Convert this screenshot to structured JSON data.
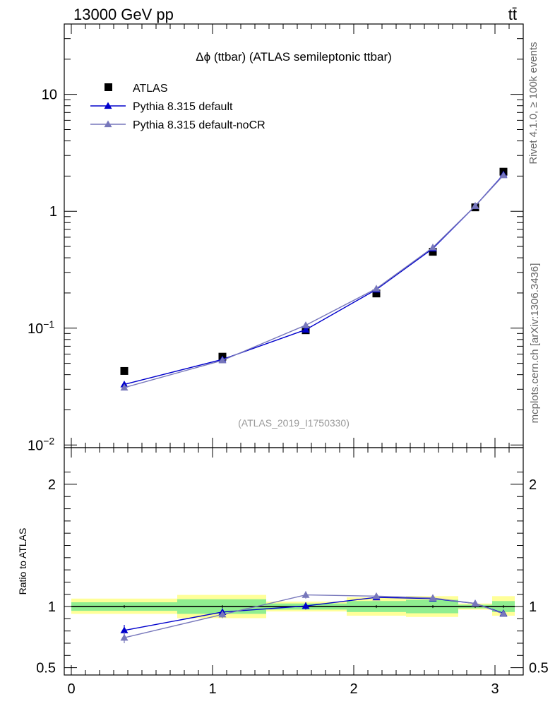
{
  "header": {
    "left_label": "13000 GeV pp",
    "right_label": "tt̄"
  },
  "side_labels": {
    "top": "Rivet 4.1.0, ≥ 100k events",
    "bottom": "mcplots.cern.ch [arXiv:1306.3436]"
  },
  "chart_data": {
    "type": "scatter",
    "title": "Δϕ (ttbar) (ATLAS semileptonic ttbar)",
    "analysis_tag": "(ATLAS_2019_I1750330)",
    "x_ticks": [
      "0",
      "1",
      "2",
      "3"
    ],
    "xlim": [
      -0.05,
      3.2
    ],
    "main": {
      "yscale": "log",
      "ylim": [
        0.0095,
        40
      ],
      "y_ticks": [
        {
          "base": "10",
          "exp": "−2",
          "value": 0.01
        },
        {
          "base": "10",
          "exp": "−1",
          "value": 0.1
        },
        {
          "base": "1",
          "exp": "",
          "value": 1
        },
        {
          "base": "10",
          "exp": "",
          "value": 10
        }
      ],
      "series": [
        {
          "name": "ATLAS",
          "color": "#000000",
          "marker": "square",
          "x": [
            0.375,
            1.07,
            1.66,
            2.16,
            2.56,
            2.86,
            3.06
          ],
          "y": [
            0.043,
            0.057,
            0.096,
            0.198,
            0.45,
            1.08,
            2.18
          ]
        },
        {
          "name": "Pythia 8.315 default",
          "color": "#0000cc",
          "marker": "triangle",
          "x": [
            0.375,
            1.07,
            1.66,
            2.16,
            2.56,
            2.86,
            3.06
          ],
          "y": [
            0.033,
            0.054,
            0.097,
            0.214,
            0.48,
            1.11,
            2.06
          ]
        },
        {
          "name": "Pythia 8.315 default-noCR",
          "color": "#7777bb",
          "marker": "triangle",
          "x": [
            0.375,
            1.07,
            1.66,
            2.16,
            2.56,
            2.86,
            3.06
          ],
          "y": [
            0.031,
            0.053,
            0.106,
            0.218,
            0.49,
            1.11,
            2.03
          ]
        }
      ]
    },
    "ratio": {
      "ylabel": "Ratio to ATLAS",
      "ylim": [
        0.44,
        2.3
      ],
      "y_ticks": [
        {
          "label": "0.5",
          "value": 0.5
        },
        {
          "label": "1",
          "value": 1
        },
        {
          "label": "2",
          "value": 2
        }
      ],
      "bands": [
        {
          "x0": 0.0,
          "x1": 0.75,
          "inner": [
            0.965,
            1.035
          ],
          "outer": [
            0.94,
            1.065
          ]
        },
        {
          "x0": 0.75,
          "x1": 1.38,
          "inner": [
            0.94,
            1.06
          ],
          "outer": [
            0.905,
            1.095
          ]
        },
        {
          "x0": 1.38,
          "x1": 1.95,
          "inner": [
            0.975,
            1.025
          ],
          "outer": [
            0.96,
            1.04
          ]
        },
        {
          "x0": 1.95,
          "x1": 2.37,
          "inner": [
            0.955,
            1.045
          ],
          "outer": [
            0.925,
            1.075
          ]
        },
        {
          "x0": 2.37,
          "x1": 2.74,
          "inner": [
            0.945,
            1.055
          ],
          "outer": [
            0.915,
            1.085
          ]
        },
        {
          "x0": 2.74,
          "x1": 2.98,
          "inner": [
            0.985,
            1.015
          ],
          "outer": [
            0.975,
            1.025
          ]
        },
        {
          "x0": 2.98,
          "x1": 3.14,
          "inner": [
            0.955,
            1.045
          ],
          "outer": [
            0.925,
            1.085
          ]
        }
      ],
      "series": [
        {
          "name": "Pythia 8.315 default",
          "color": "#0000cc",
          "x": [
            0.375,
            1.07,
            1.66,
            2.16,
            2.56,
            2.86,
            3.06
          ],
          "y": [
            0.805,
            0.955,
            1.005,
            1.075,
            1.065,
            1.025,
            0.945
          ],
          "err": [
            0.045,
            0.03,
            0.03,
            0.02,
            0.02,
            0.01,
            0.01
          ]
        },
        {
          "name": "Pythia 8.315 default-noCR",
          "color": "#7777bb",
          "x": [
            0.375,
            1.07,
            1.66,
            2.16,
            2.56,
            2.86,
            3.06
          ],
          "y": [
            0.745,
            0.935,
            1.095,
            1.085,
            1.07,
            1.025,
            0.94
          ],
          "err": [
            0.045,
            0.03,
            0.03,
            0.02,
            0.02,
            0.01,
            0.01
          ]
        }
      ]
    }
  }
}
